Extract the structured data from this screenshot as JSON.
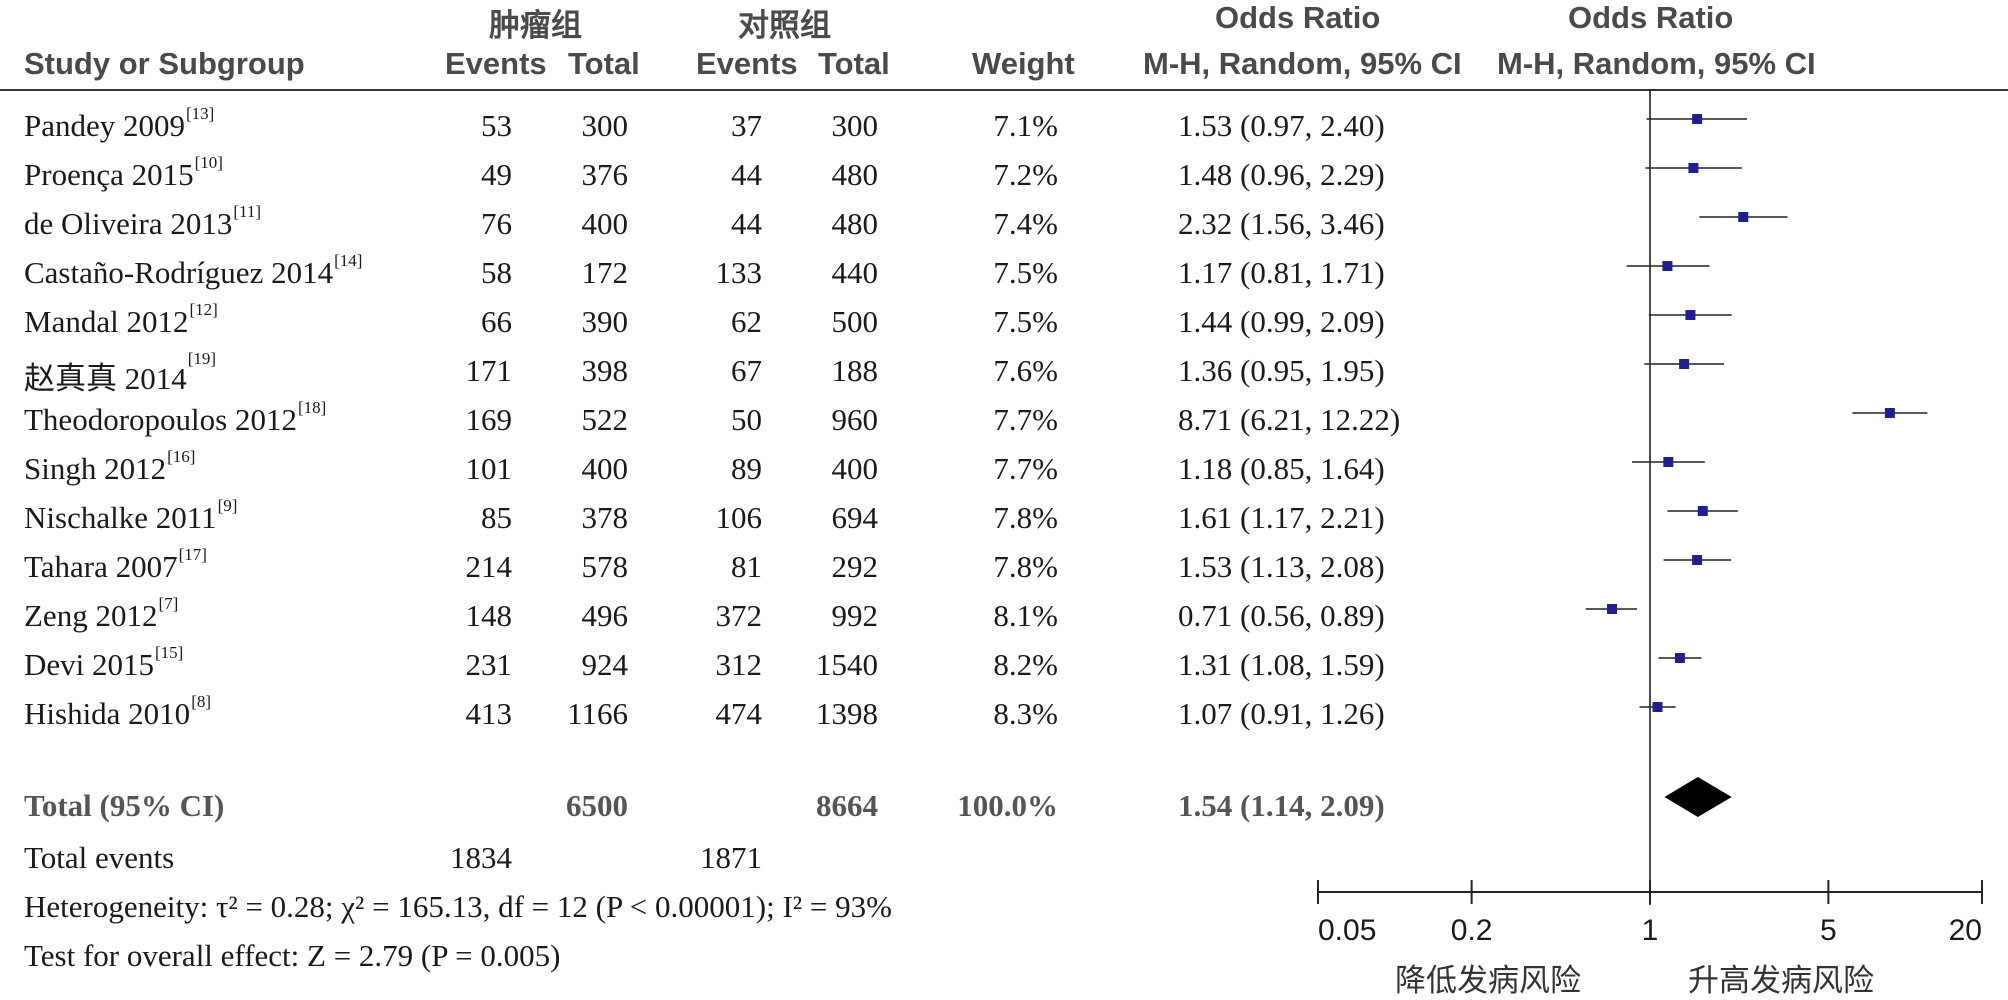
{
  "headers": {
    "tumor_group": "肿瘤组",
    "control_group": "对照组",
    "odds_ratio_1": "Odds Ratio",
    "odds_ratio_2": "Odds Ratio",
    "study": "Study or Subgroup",
    "events_1": "Events",
    "total_1": "Total",
    "events_2": "Events",
    "total_2": "Total",
    "weight": "Weight",
    "method_1": "M-H, Random, 95% CI",
    "method_2": "M-H, Random, 95% CI"
  },
  "studies": [
    {
      "name": "Pandey 2009",
      "ref": "[13]",
      "e1": "53",
      "t1": "300",
      "e2": "37",
      "t2": "300",
      "weight": "7.1%",
      "ci": "1.53 (0.97, 2.40)"
    },
    {
      "name": "Proença 2015",
      "ref": "[10]",
      "e1": "49",
      "t1": "376",
      "e2": "44",
      "t2": "480",
      "weight": "7.2%",
      "ci": "1.48 (0.96, 2.29)"
    },
    {
      "name": "de Oliveira 2013",
      "ref": "[11]",
      "e1": "76",
      "t1": "400",
      "e2": "44",
      "t2": "480",
      "weight": "7.4%",
      "ci": "2.32 (1.56, 3.46)"
    },
    {
      "name": "Castaño-Rodríguez 2014",
      "ref": "[14]",
      "e1": "58",
      "t1": "172",
      "e2": "133",
      "t2": "440",
      "weight": "7.5%",
      "ci": "1.17 (0.81, 1.71)"
    },
    {
      "name": "Mandal 2012",
      "ref": "[12]",
      "e1": "66",
      "t1": "390",
      "e2": "62",
      "t2": "500",
      "weight": "7.5%",
      "ci": "1.44 (0.99, 2.09)"
    },
    {
      "name": "赵真真 2014",
      "ref": "[19]",
      "e1": "171",
      "t1": "398",
      "e2": "67",
      "t2": "188",
      "weight": "7.6%",
      "ci": "1.36 (0.95, 1.95)"
    },
    {
      "name": "Theodoropoulos 2012",
      "ref": "[18]",
      "e1": "169",
      "t1": "522",
      "e2": "50",
      "t2": "960",
      "weight": "7.7%",
      "ci": "8.71 (6.21, 12.22)"
    },
    {
      "name": "Singh 2012",
      "ref": "[16]",
      "e1": "101",
      "t1": "400",
      "e2": "89",
      "t2": "400",
      "weight": "7.7%",
      "ci": "1.18 (0.85, 1.64)"
    },
    {
      "name": "Nischalke 2011",
      "ref": "[9]",
      "e1": "85",
      "t1": "378",
      "e2": "106",
      "t2": "694",
      "weight": "7.8%",
      "ci": "1.61 (1.17, 2.21)"
    },
    {
      "name": "Tahara 2007",
      "ref": "[17]",
      "e1": "214",
      "t1": "578",
      "e2": "81",
      "t2": "292",
      "weight": "7.8%",
      "ci": "1.53 (1.13, 2.08)"
    },
    {
      "name": "Zeng 2012",
      "ref": "[7]",
      "e1": "148",
      "t1": "496",
      "e2": "372",
      "t2": "992",
      "weight": "8.1%",
      "ci": "0.71 (0.56, 0.89)"
    },
    {
      "name": "Devi 2015",
      "ref": "[15]",
      "e1": "231",
      "t1": "924",
      "e2": "312",
      "t2": "1540",
      "weight": "8.2%",
      "ci": "1.31 (1.08, 1.59)"
    },
    {
      "name": "Hishida 2010",
      "ref": "[8]",
      "e1": "413",
      "t1": "1166",
      "e2": "474",
      "t2": "1398",
      "weight": "8.3%",
      "ci": "1.07 (0.91, 1.26)"
    }
  ],
  "total": {
    "label": "Total (95% CI)",
    "t1": "6500",
    "t2": "8664",
    "weight": "100.0%",
    "ci": "1.54 (1.14, 2.09)"
  },
  "total_events": {
    "label": "Total events",
    "e1": "1834",
    "e2": "1871"
  },
  "heterogeneity": "Heterogeneity: τ² = 0.28; χ² = 165.13, df = 12 (P < 0.00001); I² = 93%",
  "overall_effect": "Test for overall effect: Z = 2.79 (P = 0.005)",
  "axis_labels": {
    "lower": "降低发病风险",
    "higher": "升高发病风险"
  },
  "colors": {
    "marker": "#1f1f8f",
    "line": "#222222",
    "text": "#1a1a1a"
  },
  "chart_data": {
    "type": "forest",
    "x_scale": "log",
    "xlim": [
      0.05,
      20
    ],
    "ticks": [
      0.05,
      0.2,
      1,
      5,
      20
    ],
    "tick_labels": [
      "0.05",
      "0.2",
      "1",
      "5",
      "20"
    ],
    "reference_line": 1,
    "points": [
      {
        "or": 1.53,
        "lo": 0.97,
        "hi": 2.4
      },
      {
        "or": 1.48,
        "lo": 0.96,
        "hi": 2.29
      },
      {
        "or": 2.32,
        "lo": 1.56,
        "hi": 3.46
      },
      {
        "or": 1.17,
        "lo": 0.81,
        "hi": 1.71
      },
      {
        "or": 1.44,
        "lo": 0.99,
        "hi": 2.09
      },
      {
        "or": 1.36,
        "lo": 0.95,
        "hi": 1.95
      },
      {
        "or": 8.71,
        "lo": 6.21,
        "hi": 12.22
      },
      {
        "or": 1.18,
        "lo": 0.85,
        "hi": 1.64
      },
      {
        "or": 1.61,
        "lo": 1.17,
        "hi": 2.21
      },
      {
        "or": 1.53,
        "lo": 1.13,
        "hi": 2.08
      },
      {
        "or": 0.71,
        "lo": 0.56,
        "hi": 0.89
      },
      {
        "or": 1.31,
        "lo": 1.08,
        "hi": 1.59
      },
      {
        "or": 1.07,
        "lo": 0.91,
        "hi": 1.26
      }
    ],
    "pooled": {
      "or": 1.54,
      "lo": 1.14,
      "hi": 2.09
    }
  }
}
